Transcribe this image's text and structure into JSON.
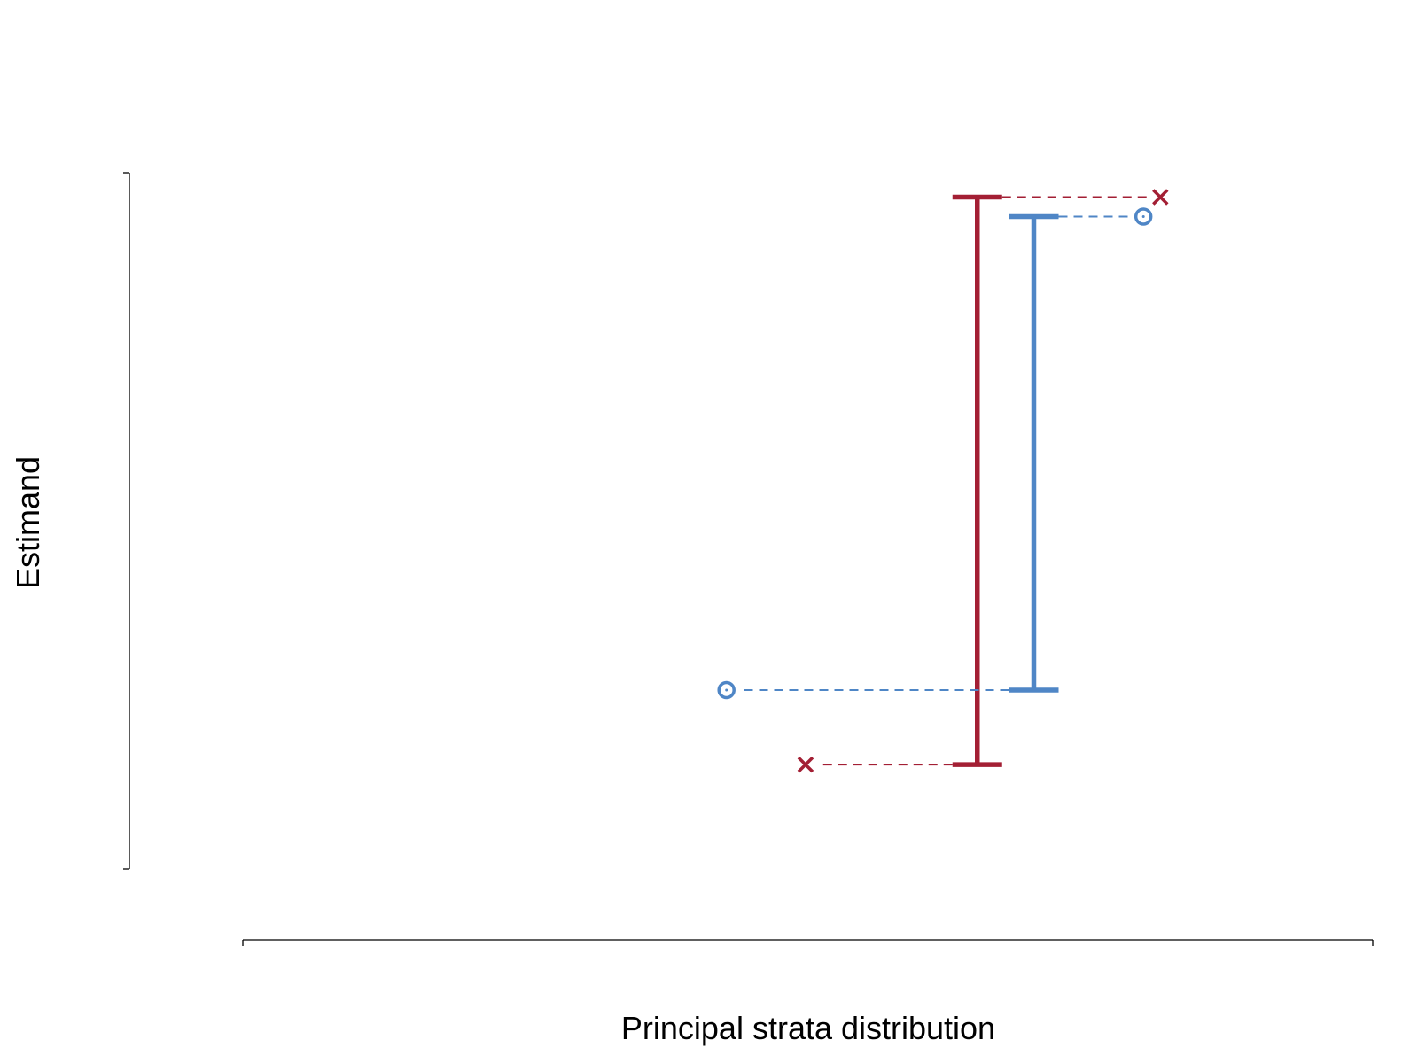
{
  "chart_data": {
    "type": "errorbar",
    "xlabel": "Principal strata distribution",
    "ylabel": "Estimand",
    "xlim": [
      0,
      1
    ],
    "ylim": [
      0,
      1
    ],
    "grid": false,
    "x_ticks_labeled": false,
    "y_ticks_labeled": false,
    "series": [
      {
        "color": "#a31f34",
        "marker": "x",
        "bar_x": 0.65,
        "lower": 0.15,
        "upper": 0.965,
        "upper_point_x": 0.812,
        "lower_point_x": 0.498
      },
      {
        "color": "#4f86c6",
        "marker": "circle",
        "bar_x": 0.7,
        "lower": 0.257,
        "upper": 0.937,
        "upper_point_x": 0.797,
        "lower_point_x": 0.428
      }
    ]
  }
}
